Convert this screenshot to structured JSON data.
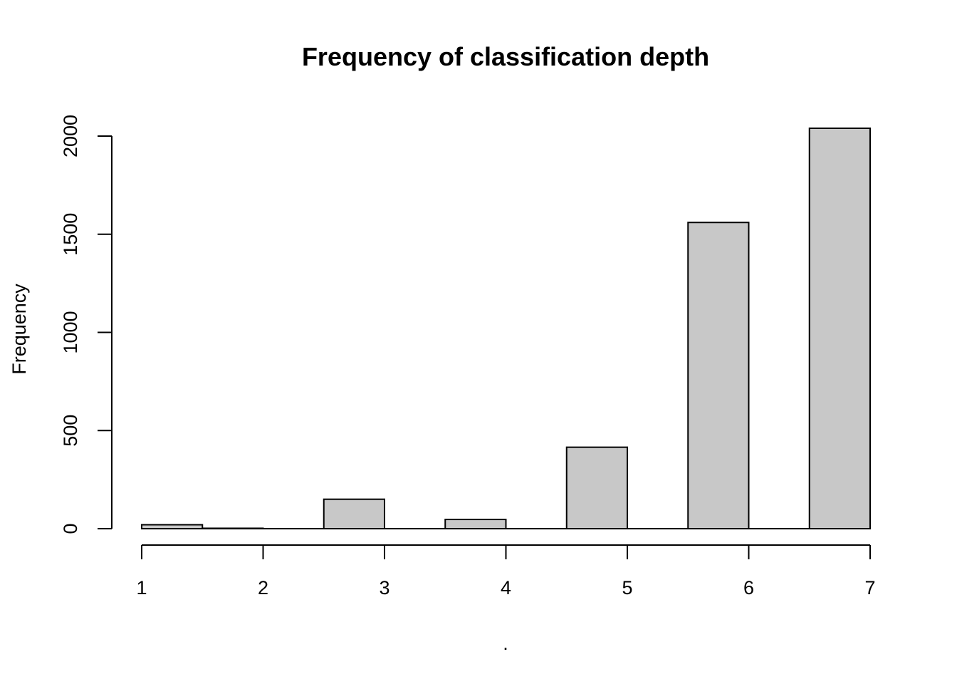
{
  "chart_data": {
    "type": "bar",
    "title": "Frequency of classification depth",
    "xlabel": ".",
    "ylabel": "Frequency",
    "categories": [
      "1",
      "2",
      "3",
      "4",
      "5",
      "6",
      "7"
    ],
    "bins": [
      {
        "from": 1.0,
        "to": 1.5,
        "value": 20
      },
      {
        "from": 1.5,
        "to": 2.0,
        "value": 2
      },
      {
        "from": 2.5,
        "to": 3.0,
        "value": 150
      },
      {
        "from": 3.5,
        "to": 4.0,
        "value": 47
      },
      {
        "from": 4.5,
        "to": 5.0,
        "value": 415
      },
      {
        "from": 5.5,
        "to": 6.0,
        "value": 1560
      },
      {
        "from": 6.5,
        "to": 7.0,
        "value": 2040
      }
    ],
    "xlim": [
      1,
      7
    ],
    "ylim": [
      0,
      2040
    ],
    "xticks": [
      1,
      2,
      3,
      4,
      5,
      6,
      7
    ],
    "yticks": [
      0,
      500,
      1000,
      1500,
      2000
    ],
    "grid": false,
    "bar_color": "#c8c8c8",
    "bar_stroke": "#000000"
  }
}
